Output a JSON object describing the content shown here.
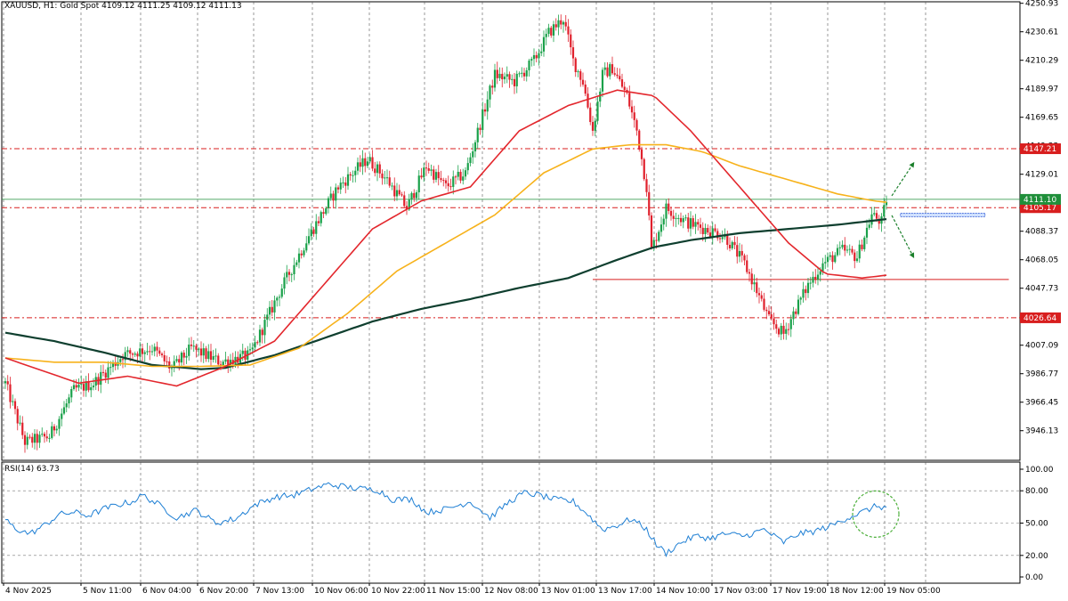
{
  "header": {
    "title": "XAUUSD, H1:  Gold Spot",
    "ohlc": "4109.12 4111.25 4109.12 4111.13"
  },
  "rsi_header": "RSI(14) 63.73",
  "colors": {
    "bull": "#1aa14a",
    "bear": "#e0202c",
    "ma_fast": "#e3272d",
    "ma_mid": "#f7b21b",
    "ma_slow": "#0f3f2f",
    "rsi": "#1e7fd4",
    "level": "#d81e1e",
    "current": "#1f8f3a",
    "arrow": "#1a7f2a",
    "circle": "#4caf3a"
  },
  "chart_data": [
    {
      "type": "candlestick",
      "symbol": "XAUUSD",
      "timeframe": "H1",
      "ylim": [
        3925,
        4252
      ],
      "y_ticks": [
        "4250.93",
        "4230.61",
        "4210.29",
        "4189.97",
        "4169.65",
        "4149.33",
        "4129.01",
        "4108.69",
        "4088.37",
        "4068.05",
        "4047.73",
        "4027.41",
        "4007.09",
        "3986.77",
        "3966.45",
        "3946.13"
      ],
      "x_ticks": [
        "4 Nov 2025",
        "5 Nov 11:00",
        "6 Nov 04:00",
        "6 Nov 20:00",
        "7 Nov 13:00",
        "10 Nov 06:00",
        "10 Nov 22:00",
        "11 Nov 15:00",
        "12 Nov 08:00",
        "13 Nov 01:00",
        "13 Nov 17:00",
        "14 Nov 10:00",
        "17 Nov 03:00",
        "17 Nov 19:00",
        "18 Nov 12:00",
        "19 Nov 05:00"
      ],
      "price_path": [
        [
          0,
          3980
        ],
        [
          8,
          3938
        ],
        [
          18,
          3942
        ],
        [
          28,
          3975
        ],
        [
          36,
          3980
        ],
        [
          48,
          4000
        ],
        [
          60,
          4005
        ],
        [
          68,
          3990
        ],
        [
          76,
          4005
        ],
        [
          88,
          3995
        ],
        [
          100,
          4000
        ],
        [
          112,
          4045
        ],
        [
          124,
          4085
        ],
        [
          136,
          4120
        ],
        [
          148,
          4140
        ],
        [
          156,
          4125
        ],
        [
          164,
          4105
        ],
        [
          172,
          4135
        ],
        [
          180,
          4120
        ],
        [
          188,
          4130
        ],
        [
          194,
          4165
        ],
        [
          200,
          4200
        ],
        [
          208,
          4195
        ],
        [
          216,
          4210
        ],
        [
          222,
          4230
        ],
        [
          228,
          4240
        ],
        [
          232,
          4210
        ],
        [
          236,
          4195
        ],
        [
          240,
          4160
        ],
        [
          244,
          4200
        ],
        [
          248,
          4205
        ],
        [
          254,
          4185
        ],
        [
          258,
          4160
        ],
        [
          262,
          4120
        ],
        [
          264,
          4075
        ],
        [
          270,
          4105
        ],
        [
          278,
          4095
        ],
        [
          286,
          4090
        ],
        [
          294,
          4085
        ],
        [
          302,
          4065
        ],
        [
          306,
          4050
        ],
        [
          312,
          4025
        ],
        [
          318,
          4015
        ],
        [
          322,
          4030
        ],
        [
          328,
          4050
        ],
        [
          334,
          4065
        ],
        [
          342,
          4075
        ],
        [
          348,
          4070
        ],
        [
          354,
          4100
        ],
        [
          358,
          4095
        ],
        [
          360,
          4111
        ]
      ],
      "candle_count": 361,
      "ma_fast": [
        [
          0,
          3998
        ],
        [
          30,
          3980
        ],
        [
          50,
          3985
        ],
        [
          70,
          3978
        ],
        [
          90,
          3992
        ],
        [
          110,
          4010
        ],
        [
          130,
          4050
        ],
        [
          150,
          4090
        ],
        [
          170,
          4110
        ],
        [
          190,
          4120
        ],
        [
          210,
          4160
        ],
        [
          230,
          4178
        ],
        [
          250,
          4189
        ],
        [
          265,
          4185
        ],
        [
          280,
          4160
        ],
        [
          300,
          4120
        ],
        [
          320,
          4080
        ],
        [
          335,
          4058
        ],
        [
          350,
          4055
        ],
        [
          360,
          4057
        ]
      ],
      "ma_mid": [
        [
          0,
          3998
        ],
        [
          20,
          3995
        ],
        [
          40,
          3995
        ],
        [
          60,
          3992
        ],
        [
          80,
          3992
        ],
        [
          100,
          3993
        ],
        [
          120,
          4005
        ],
        [
          140,
          4030
        ],
        [
          160,
          4060
        ],
        [
          180,
          4080
        ],
        [
          200,
          4100
        ],
        [
          220,
          4130
        ],
        [
          240,
          4147
        ],
        [
          255,
          4150
        ],
        [
          270,
          4150
        ],
        [
          285,
          4145
        ],
        [
          300,
          4135
        ],
        [
          320,
          4125
        ],
        [
          340,
          4115
        ],
        [
          355,
          4110
        ],
        [
          360,
          4109
        ]
      ],
      "ma_slow": [
        [
          0,
          4016
        ],
        [
          20,
          4010
        ],
        [
          40,
          4002
        ],
        [
          60,
          3993
        ],
        [
          80,
          3990
        ],
        [
          90,
          3991
        ],
        [
          110,
          4000
        ],
        [
          130,
          4012
        ],
        [
          150,
          4024
        ],
        [
          170,
          4033
        ],
        [
          190,
          4040
        ],
        [
          210,
          4048
        ],
        [
          230,
          4055
        ],
        [
          250,
          4068
        ],
        [
          265,
          4077
        ],
        [
          280,
          4082
        ],
        [
          300,
          4087
        ],
        [
          320,
          4090
        ],
        [
          340,
          4093
        ],
        [
          360,
          4097
        ]
      ],
      "levels": [
        {
          "label": "4147.21",
          "value": 4147.21,
          "color": "#d81e1e"
        },
        {
          "label": "4105.17",
          "value": 4105.17,
          "color": "#d81e1e"
        },
        {
          "label": "4026.64",
          "value": 4026.64,
          "color": "#d81e1e"
        }
      ],
      "current_price": {
        "label": "4111.10",
        "value": 4111.1
      },
      "support_line": {
        "value": 4054,
        "from_index": 240,
        "to_index": 410
      },
      "blue_zone": {
        "value": 4100,
        "from_index": 365,
        "to_index": 385
      }
    },
    {
      "type": "line",
      "name": "RSI(14)",
      "ylim": [
        0,
        100
      ],
      "y_ticks": [
        "100.00",
        "80.00",
        "50.00",
        "20.00",
        "0.00"
      ],
      "values_path": [
        [
          0,
          53
        ],
        [
          4,
          45
        ],
        [
          10,
          40
        ],
        [
          16,
          48
        ],
        [
          22,
          58
        ],
        [
          28,
          60
        ],
        [
          34,
          57
        ],
        [
          40,
          63
        ],
        [
          46,
          67
        ],
        [
          52,
          70
        ],
        [
          56,
          76
        ],
        [
          62,
          68
        ],
        [
          70,
          55
        ],
        [
          78,
          62
        ],
        [
          86,
          50
        ],
        [
          94,
          54
        ],
        [
          102,
          67
        ],
        [
          110,
          74
        ],
        [
          118,
          76
        ],
        [
          126,
          82
        ],
        [
          132,
          86
        ],
        [
          138,
          84
        ],
        [
          144,
          82
        ],
        [
          152,
          81
        ],
        [
          158,
          72
        ],
        [
          166,
          72
        ],
        [
          172,
          60
        ],
        [
          180,
          63
        ],
        [
          190,
          70
        ],
        [
          198,
          55
        ],
        [
          206,
          70
        ],
        [
          212,
          78
        ],
        [
          218,
          76
        ],
        [
          224,
          72
        ],
        [
          232,
          70
        ],
        [
          238,
          58
        ],
        [
          244,
          44
        ],
        [
          250,
          48
        ],
        [
          256,
          54
        ],
        [
          262,
          44
        ],
        [
          266,
          30
        ],
        [
          270,
          22
        ],
        [
          276,
          32
        ],
        [
          282,
          38
        ],
        [
          288,
          36
        ],
        [
          294,
          40
        ],
        [
          302,
          38
        ],
        [
          310,
          44
        ],
        [
          318,
          32
        ],
        [
          324,
          40
        ],
        [
          330,
          42
        ],
        [
          338,
          48
        ],
        [
          344,
          55
        ],
        [
          350,
          60
        ],
        [
          356,
          66
        ],
        [
          360,
          64
        ]
      ],
      "circle_index": 352,
      "circle_value": 60
    }
  ]
}
